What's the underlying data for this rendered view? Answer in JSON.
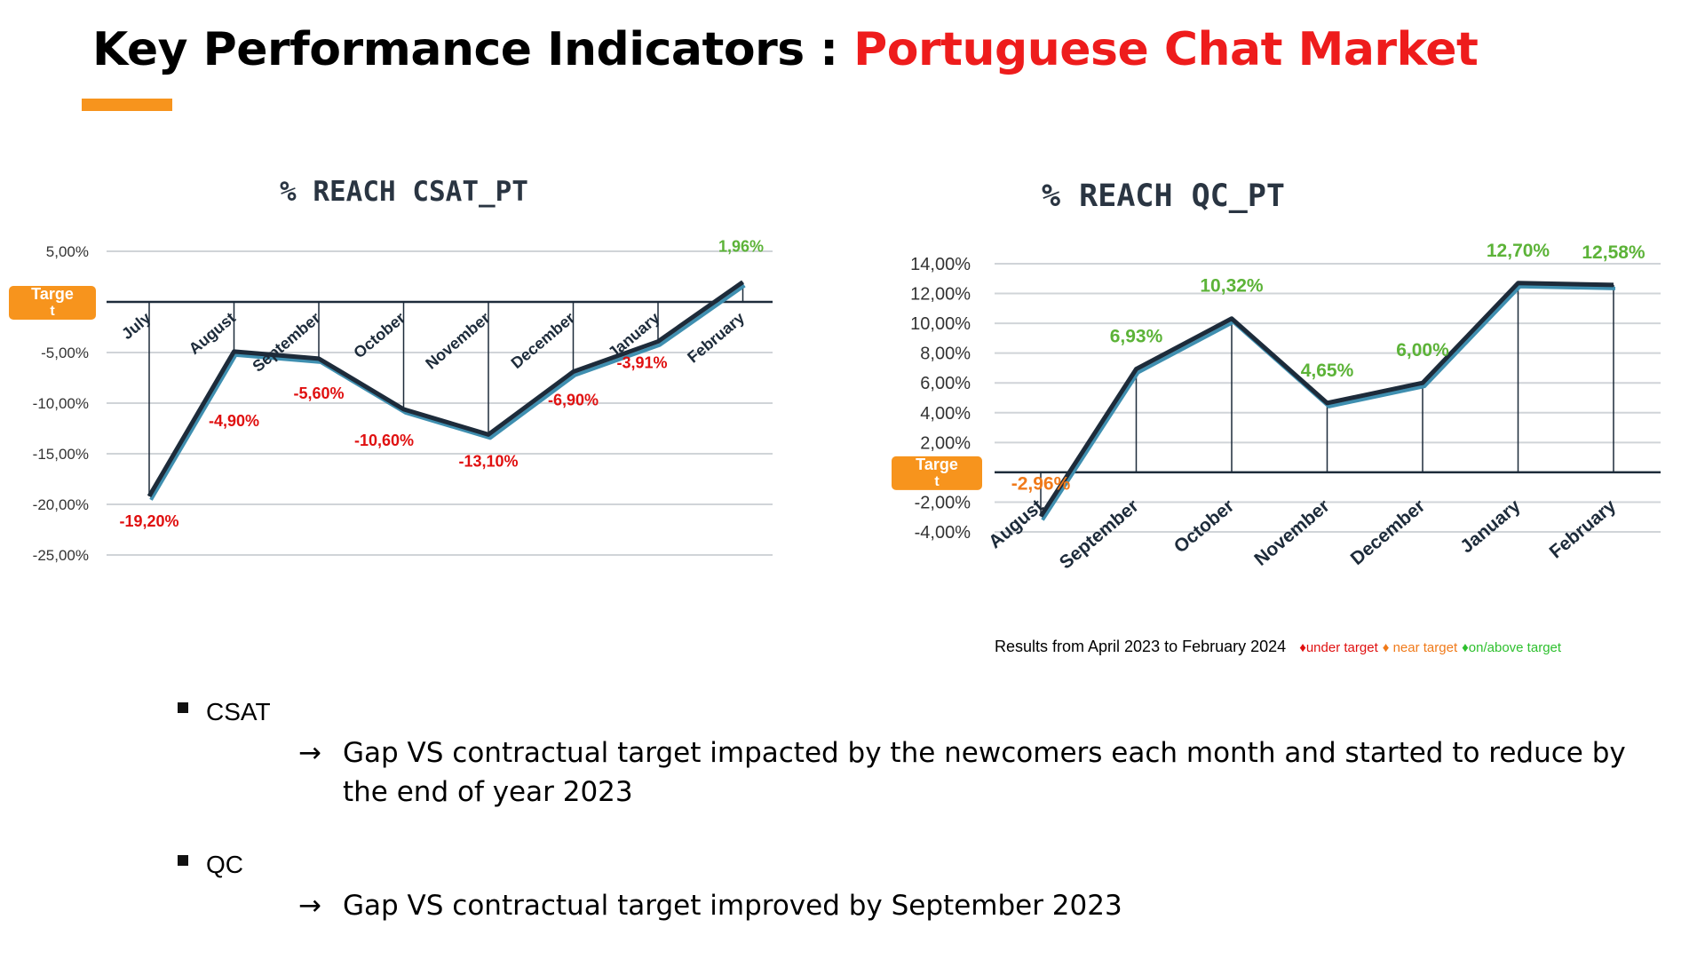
{
  "page": {
    "title_main": "Key Performance Indicators : ",
    "title_accent": "Portuguese Chat Market",
    "target_label": "Targe\nt",
    "legend": {
      "results": "Results from April 2023 to February 2024",
      "under": "♦under target",
      "near": "♦ near target",
      "onabove": "♦on/above target"
    },
    "bullets": [
      {
        "label": "CSAT",
        "detail": "Gap VS contractual target impacted by the newcomers each month and started to reduce by the end of year 2023"
      },
      {
        "label": "QC",
        "detail": "Gap VS contractual target improved by September 2023"
      }
    ],
    "arrow": "→",
    "colors": {
      "accent": "#ee1c1c",
      "orange": "#f7941d",
      "line": "#1d2b3a",
      "under": "#e01010",
      "near": "#f07a1a",
      "onabove": "#5cb338"
    }
  },
  "chart_data": [
    {
      "type": "line",
      "title": "% REACH CSAT_PT",
      "categories": [
        "July",
        "August",
        "September",
        "October",
        "November",
        "December",
        "January",
        "February"
      ],
      "series": [
        {
          "values": [
            -19.2,
            -4.9,
            -5.6,
            -10.6,
            -13.1,
            -6.9,
            -3.91,
            1.96
          ]
        }
      ],
      "data_labels": [
        "-19,20%",
        "-4,90%",
        "-5,60%",
        "-10,60%",
        "-13,10%",
        "-6,90%",
        "-3,91%",
        "1,96%"
      ],
      "label_status": [
        "under",
        "under",
        "under",
        "under",
        "under",
        "under",
        "under",
        "onabove"
      ],
      "yticks": [
        5,
        0,
        -5,
        -10,
        -15,
        -20,
        -25
      ],
      "ytick_labels": [
        "5,00%",
        "",
        "-5,00%",
        "-10,00%",
        "-15,00%",
        "-20,00%",
        "-25,00%"
      ],
      "ylim": [
        -25,
        5
      ],
      "grid": true
    },
    {
      "type": "line",
      "title": "% REACH QC_PT",
      "categories": [
        "August",
        "September",
        "October",
        "November",
        "December",
        "January",
        "February"
      ],
      "series": [
        {
          "values": [
            -2.96,
            6.93,
            10.32,
            4.65,
            6.0,
            12.7,
            12.58
          ]
        }
      ],
      "data_labels": [
        "-2,96%",
        "6,93%",
        "10,32%",
        "4,65%",
        "6,00%",
        "12,70%",
        "12,58%"
      ],
      "label_status": [
        "near",
        "onabove",
        "onabove",
        "onabove",
        "onabove",
        "onabove",
        "onabove"
      ],
      "yticks": [
        14,
        12,
        10,
        8,
        6,
        4,
        2,
        0,
        -2,
        -4
      ],
      "ytick_labels": [
        "14,00%",
        "12,00%",
        "10,00%",
        "8,00%",
        "6,00%",
        "4,00%",
        "2,00%",
        "",
        "-2,00%",
        "-4,00%"
      ],
      "ylim": [
        -4,
        14
      ],
      "grid": true
    }
  ]
}
